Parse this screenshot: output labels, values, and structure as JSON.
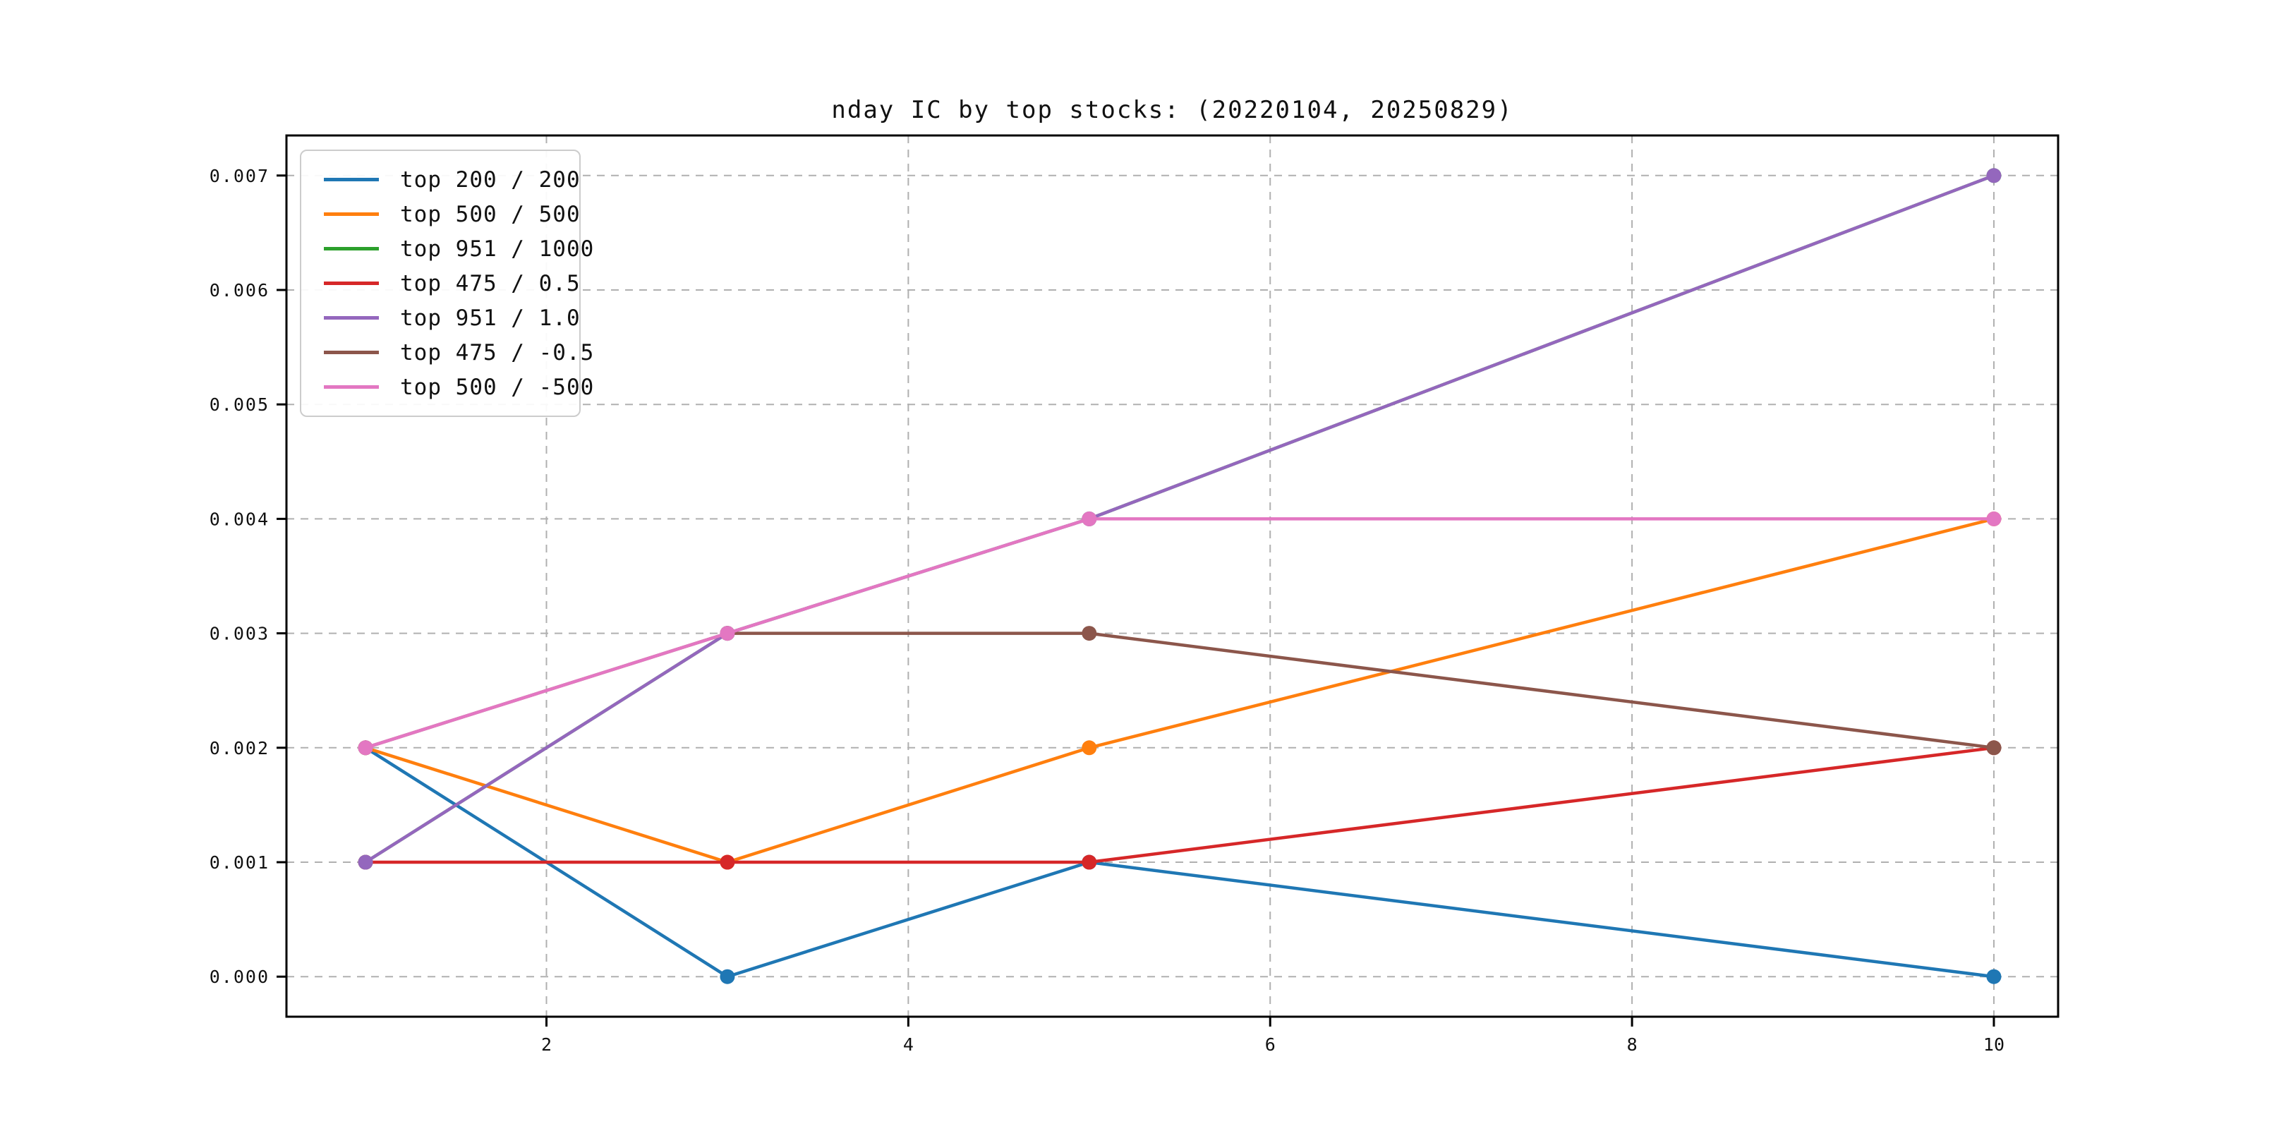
{
  "page": {
    "background": "#ffffff"
  },
  "chart_data": {
    "type": "line",
    "title": "nday IC by top stocks: (20220104, 20250829)",
    "xlabel": "",
    "ylabel": "",
    "x": [
      1,
      3,
      5,
      10
    ],
    "series": [
      {
        "name": "top 200 / 200",
        "color": "#1f77b4",
        "values": [
          0.002,
          0.0,
          0.001,
          0.0
        ]
      },
      {
        "name": "top 500 / 500",
        "color": "#ff7f0e",
        "values": [
          0.002,
          0.001,
          0.002,
          0.004
        ]
      },
      {
        "name": "top 951 / 1000",
        "color": "#2ca02c",
        "values": [
          0.001,
          0.003,
          0.004,
          0.007
        ]
      },
      {
        "name": "top 475 / 0.5",
        "color": "#d62728",
        "values": [
          0.001,
          0.001,
          0.001,
          0.002
        ]
      },
      {
        "name": "top 951 / 1.0",
        "color": "#9467bd",
        "values": [
          0.001,
          0.003,
          0.004,
          0.007
        ]
      },
      {
        "name": "top 475 / -0.5",
        "color": "#8c564b",
        "values": [
          0.002,
          0.003,
          0.003,
          0.002
        ]
      },
      {
        "name": "top 500 / -500",
        "color": "#e377c2",
        "values": [
          0.002,
          0.003,
          0.004,
          0.004
        ]
      }
    ],
    "xticks": [
      "2",
      "4",
      "6",
      "8",
      "10"
    ],
    "yticks": [
      "0.000",
      "0.001",
      "0.002",
      "0.003",
      "0.004",
      "0.005",
      "0.006",
      "0.007"
    ],
    "xlim": [
      0.563,
      10.355
    ],
    "ylim": [
      -0.00035,
      0.00735
    ],
    "grid": true,
    "grid_color": "#b0b0b0",
    "spine_color": "#000000",
    "legend_position": "upper-left",
    "marker": "circle"
  }
}
